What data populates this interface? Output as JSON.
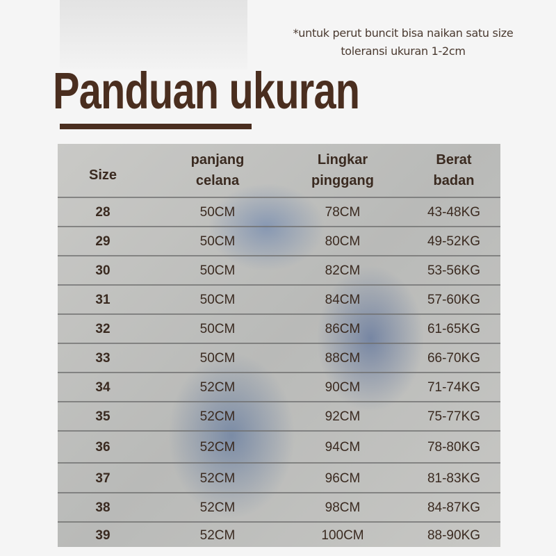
{
  "notes": [
    "*untuk perut buncit bisa naikan satu size",
    "toleransi ukuran 1-2cm"
  ],
  "title": "Panduan ukuran",
  "colors": {
    "title": "#4a2e1f",
    "text": "#3a2a20",
    "background": "#f5f5f5"
  },
  "table": {
    "headers": [
      [
        "Size"
      ],
      [
        "panjang",
        "celana"
      ],
      [
        "Lingkar",
        "pinggang"
      ],
      [
        "Berat",
        "badan"
      ]
    ],
    "rows": [
      [
        "28",
        "50CM",
        "78CM",
        "43-48KG"
      ],
      [
        "29",
        "50CM",
        "80CM",
        "49-52KG"
      ],
      [
        "30",
        "50CM",
        "82CM",
        "53-56KG"
      ],
      [
        "31",
        "50CM",
        "84CM",
        "57-60KG"
      ],
      [
        "32",
        "50CM",
        "86CM",
        "61-65KG"
      ],
      [
        "33",
        "50CM",
        "88CM",
        "66-70KG"
      ],
      [
        "34",
        "52CM",
        "90CM",
        "71-74KG"
      ],
      [
        "35",
        "52CM",
        "92CM",
        "75-77KG"
      ],
      [
        "36",
        "52CM",
        "94CM",
        "78-80KG"
      ],
      [
        "37",
        "52CM",
        "96CM",
        "81-83KG"
      ],
      [
        "38",
        "52CM",
        "98CM",
        "84-87KG"
      ],
      [
        "39",
        "52CM",
        "100CM",
        "88-90KG"
      ]
    ]
  }
}
